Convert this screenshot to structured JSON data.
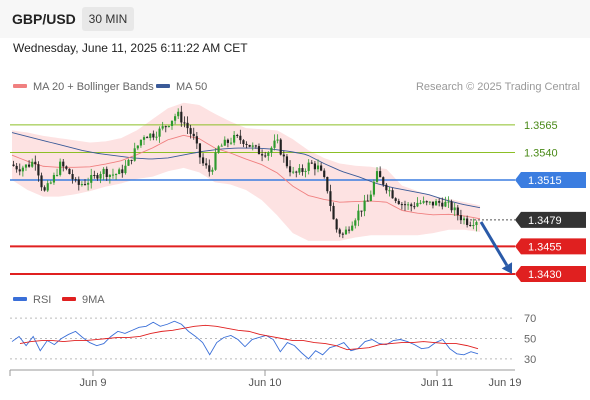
{
  "header": {
    "symbol": "GBP/USD",
    "timeframe": "30 MIN"
  },
  "datetime": "Wednesday, June 11, 2025 6:11:22 AM CET",
  "credit": "Research © 2025 Trading Central",
  "colors": {
    "bollinger": "#f08080",
    "ma50": "#3a5a98",
    "price_box": "#333333",
    "pivot": "#3b7de0",
    "support": "#e02020",
    "resistance": "#8cbf26",
    "rsi": "#3a6fd8",
    "rsi_ma": "#e02020",
    "arrow": "#2a5aa8"
  },
  "chart_data": [
    {
      "type": "candlestick",
      "title": "GBP/USD",
      "legend": [
        {
          "label": "MA 20 + Bollinger Bands",
          "color": "#f08080"
        },
        {
          "label": "MA 50",
          "color": "#3a5a98"
        }
      ],
      "legend_position": "top-left",
      "ylim": [
        1.342,
        1.3592
      ],
      "x_ticks": [
        "Jun 9",
        "Jun 10",
        "Jun 11",
        "Jun 19"
      ],
      "levels": [
        {
          "value": 1.3565,
          "label": "1.3565",
          "type": "resistance"
        },
        {
          "value": 1.354,
          "label": "1.3540",
          "type": "resistance"
        },
        {
          "value": 1.3515,
          "label": "1.3515",
          "type": "pivot"
        },
        {
          "value": 1.3479,
          "label": "1.3479",
          "type": "last_price"
        },
        {
          "value": 1.3455,
          "label": "1.3455",
          "type": "support"
        },
        {
          "value": 1.343,
          "label": "1.3430",
          "type": "support"
        }
      ],
      "close_path": [
        1.3529,
        1.3526,
        1.3528,
        1.3533,
        1.3503,
        1.3514,
        1.3529,
        1.3522,
        1.351,
        1.3513,
        1.3517,
        1.3524,
        1.352,
        1.3521,
        1.3528,
        1.3542,
        1.3556,
        1.3556,
        1.356,
        1.3567,
        1.3575,
        1.3566,
        1.3553,
        1.3531,
        1.3522,
        1.3544,
        1.3549,
        1.3553,
        1.3551,
        1.3545,
        1.354,
        1.3541,
        1.355,
        1.3532,
        1.352,
        1.3523,
        1.353,
        1.3526,
        1.351,
        1.3472,
        1.3465,
        1.3477,
        1.3488,
        1.3496,
        1.352,
        1.3511,
        1.3501,
        1.3494,
        1.3491,
        1.3495,
        1.3493,
        1.3494,
        1.3495,
        1.349,
        1.3482,
        1.3477,
        1.3479
      ],
      "bb_upper": [
        1.356,
        1.3558,
        1.3555,
        1.3553,
        1.3551,
        1.3549,
        1.355,
        1.3553,
        1.356,
        1.357,
        1.358,
        1.3585,
        1.3583,
        1.3575,
        1.3568,
        1.3562,
        1.3561,
        1.356,
        1.3552,
        1.3542,
        1.3535,
        1.353,
        1.3528,
        1.3527,
        1.3525,
        1.351,
        1.3505,
        1.35,
        1.3498,
        1.3495,
        1.3492
      ],
      "bb_lower": [
        1.3515,
        1.3506,
        1.35,
        1.35,
        1.3502,
        1.3505,
        1.3509,
        1.3512,
        1.3516,
        1.3518,
        1.3523,
        1.3526,
        1.3522,
        1.3513,
        1.3511,
        1.3506,
        1.3497,
        1.3483,
        1.3467,
        1.346,
        1.346,
        1.346,
        1.3463,
        1.3465,
        1.3465,
        1.3465,
        1.3465,
        1.3467,
        1.347,
        1.347,
        1.3468
      ],
      "ma50_path": [
        1.3558,
        1.3554,
        1.355,
        1.3546,
        1.3542,
        1.3539,
        1.3537,
        1.3535,
        1.3534,
        1.3535,
        1.3538,
        1.3541,
        1.3543,
        1.3544,
        1.3544,
        1.3543,
        1.3541,
        1.3538,
        1.353,
        1.3523,
        1.3518,
        1.3512,
        1.3508,
        1.3505,
        1.3502,
        1.3497,
        1.3493,
        1.349
      ],
      "forecast_arrow": {
        "from": 1.3477,
        "to": 1.343
      }
    },
    {
      "type": "line",
      "title": "RSI",
      "legend": [
        {
          "label": "RSI",
          "color": "#3a6fd8"
        },
        {
          "label": "9MA",
          "color": "#e02020"
        }
      ],
      "ylim": [
        22,
        78
      ],
      "y_ticks": [
        70,
        50,
        30
      ],
      "series": [
        {
          "name": "RSI",
          "values": [
            47,
            52,
            43,
            52,
            38,
            48,
            44,
            50,
            54,
            57,
            51,
            46,
            43,
            45,
            52,
            57,
            55,
            58,
            61,
            62,
            66,
            62,
            64,
            67,
            64,
            57,
            52,
            46,
            34,
            46,
            51,
            53,
            49,
            42,
            49,
            51,
            53,
            49,
            37,
            46,
            43,
            36,
            30,
            38,
            34,
            41,
            43,
            46,
            38,
            40,
            47,
            49,
            45,
            44,
            48,
            49,
            47,
            44,
            40,
            41,
            46,
            49,
            40,
            35,
            34,
            37,
            35
          ]
        },
        {
          "name": "9MA",
          "values": [
            45,
            47,
            48,
            48,
            47,
            48,
            48,
            49,
            50,
            51,
            51,
            52,
            55,
            57,
            58,
            60,
            62,
            63,
            62,
            60,
            58,
            57,
            54,
            52,
            50,
            48,
            48,
            46,
            45,
            43,
            39,
            40,
            41,
            44,
            45,
            46,
            46,
            47,
            46,
            45,
            45,
            43,
            40
          ]
        }
      ]
    }
  ]
}
